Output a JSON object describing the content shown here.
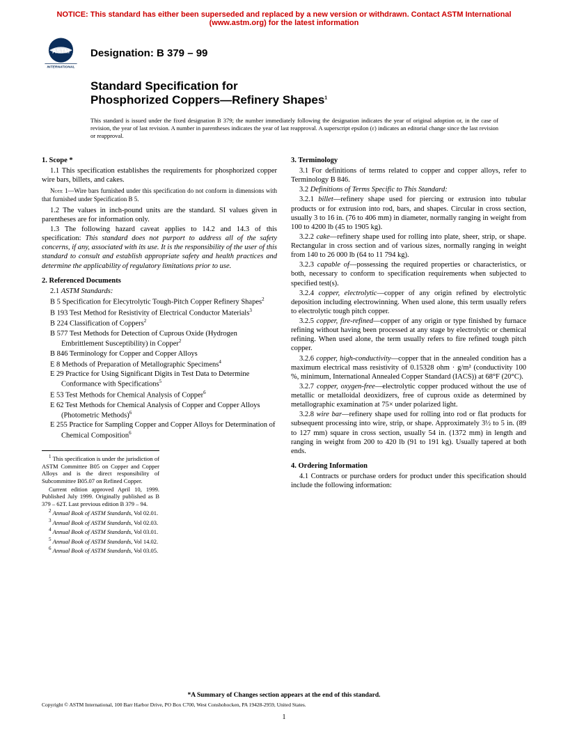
{
  "notice": "NOTICE: This standard has either been superseded and replaced by a new version or withdrawn. Contact ASTM International (www.astm.org) for the latest information",
  "logo_label": "ASTM INTERNATIONAL",
  "designation": "Designation: B 379 – 99",
  "title_line1": "Standard Specification for",
  "title_line2": "Phosphorized Coppers—Refinery Shapes",
  "title_sup": "1",
  "issuance": "This standard is issued under the fixed designation B 379; the number immediately following the designation indicates the year of original adoption or, in the case of revision, the year of last revision. A number in parentheses indicates the year of last reapproval. A superscript epsilon (ε) indicates an editorial change since the last revision or reapproval.",
  "s1_head": "1.  Scope *",
  "s1_1": "1.1 This specification establishes the requirements for phosphorized copper wire bars, billets, and cakes.",
  "note1": "NOTE 1—Wire bars furnished under this specification do not conform in dimensions with that furnished under Specification B 5.",
  "s1_2": "1.2 The values in inch-pound units are the standard. SI values given in parentheses are for information only.",
  "s1_3a": "1.3 The following hazard caveat applies to 14.2 and 14.3 of this specification: ",
  "s1_3b": "This standard does not purport to address all of the safety concerns, if any, associated with its use. It is the responsibility of the user of this standard to consult and establish appropriate safety and health practices and determine the applicability of regulatory limitations prior to use.",
  "s2_head": "2.  Referenced Documents",
  "s2_1": "2.1 ",
  "s2_1i": "ASTM Standards:",
  "refs": [
    {
      "t": "B 5  Specification for Elecytrolytic Tough-Pitch Copper Refinery Shapes",
      "s": "2"
    },
    {
      "t": "B 193  Test Method for Resistivity of Electrical Conductor Materials",
      "s": "3"
    },
    {
      "t": "B 224  Classification of Coppers",
      "s": "2"
    },
    {
      "t": "B 577  Test Methods for Detection of Cuprous Oxide (Hydrogen Embrittlement Susceptibility) in Copper",
      "s": "2"
    },
    {
      "t": "B 846  Terminology for Copper and Copper Alloys",
      "s": ""
    },
    {
      "t": "E 8  Methods of Preparation of Metallographic Specimens",
      "s": "4"
    },
    {
      "t": "E 29  Practice for Using Significant Digits in Test Data to Determine Conformance with Specifications",
      "s": "5"
    },
    {
      "t": "E 53  Test Methods for Chemical Analysis of Copper",
      "s": "6"
    },
    {
      "t": "E 62  Test Methods for Chemical Analysis of Copper and Copper Alloys (Photometric Methods)",
      "s": "6"
    },
    {
      "t": "E 255  Practice for Sampling Copper and Copper Alloys for Determination of Chemical Composition",
      "s": "6"
    }
  ],
  "fn1": " This specification is under the jurisdiction of ASTM Committee B05 on Copper and Copper Alloys and is the direct responsibility of Subcommittee B05.07 on Refined Copper.",
  "fn1b": "Current edition approved April 10, 1999. Published July 1999. Originally published as B 379 – 62T. Last previous edition B 379 – 94.",
  "fn2": "Annual Book of ASTM Standards",
  "fn2v": ", Vol 02.01.",
  "fn3v": ", Vol 02.03.",
  "fn4v": ", Vol 03.01.",
  "fn5v": ", Vol 14.02.",
  "fn6v": ", Vol 03.05.",
  "s3_head": "3.  Terminology",
  "s3_1": "3.1 For definitions of terms related to copper and copper alloys, refer to Terminology B 846.",
  "s3_2": "3.2 ",
  "s3_2i": "Definitions of Terms Specific to This Standard:",
  "s3_2_1a": "3.2.1 ",
  "s3_2_1b": "billet",
  "s3_2_1c": "—refinery shape used for piercing or extrusion into tubular products or for extrusion into rod, bars, and shapes. Circular in cross section, usually 3 to 16 in. (76 to 406 mm) in diameter, normally ranging in weight from 100 to 4200 lb (45 to 1905 kg).",
  "s3_2_2a": "3.2.2 ",
  "s3_2_2b": "cake",
  "s3_2_2c": "—refinery shape used for rolling into plate, sheer, strip, or shape. Rectangular in cross section and of various sizes, normally ranging in weight from 140 to 26 000 lb (64 to 11 794 kg).",
  "s3_2_3a": "3.2.3 ",
  "s3_2_3b": "capable of",
  "s3_2_3c": "—possessing the required properties or characteristics, or both, necessary to conform to specification requirements when subjected to specified test(s).",
  "s3_2_4a": "3.2.4 ",
  "s3_2_4b": "copper, electrolytic",
  "s3_2_4c": "—copper of any origin refined by electrolytic deposition including electrowinning. When used alone, this term usually refers to electrolytic tough pitch copper.",
  "s3_2_5a": "3.2.5 ",
  "s3_2_5b": "copper, fire-refined",
  "s3_2_5c": "—copper of any origin or type finished by furnace refining without having been processed at any stage by electrolytic or chemical refining. When used alone, the term usually refers to fire refined tough pitch copper.",
  "s3_2_6a": "3.2.6 ",
  "s3_2_6b": "copper, high-conductivity",
  "s3_2_6c": "—copper that in the annealed condition has a maximum electrical mass resistivity of 0.15328 ohm · g/m² (conductivity 100 %, minimum, International Annealed Copper Standard (IACS)) at 68°F (20°C).",
  "s3_2_7a": "3.2.7 ",
  "s3_2_7b": "copper, oxygen-free",
  "s3_2_7c": "—electrolytic copper produced without the use of metallic or metalloidal deoxidizers, free of cuprous oxide as determined by metallographic examination at 75× under polarized light.",
  "s3_2_8a": "3.2.8 ",
  "s3_2_8b": "wire bar",
  "s3_2_8c": "—refinery shape used for rolling into rod or flat products for subsequent processing into wire, strip, or shape. Approximately 3½ to 5 in. (89 to 127 mm) square in cross section, usually 54 in. (1372 mm) in length and ranging in weight from 200 to 420 lb (91 to 191 kg). Usually tapered at both ends.",
  "s4_head": "4.  Ordering Information",
  "s4_1": "4.1 Contracts or purchase orders for product under this specification should include the following information:",
  "summary": "*A Summary of Changes section appears at the end of this standard.",
  "copyright": "Copyright © ASTM International, 100 Barr Harbor Drive, PO Box C700, West Conshohocken, PA 19428-2959, United States.",
  "pagenum": "1",
  "colors": {
    "notice": "#cc0000",
    "text": "#000000",
    "background": "#ffffff"
  }
}
